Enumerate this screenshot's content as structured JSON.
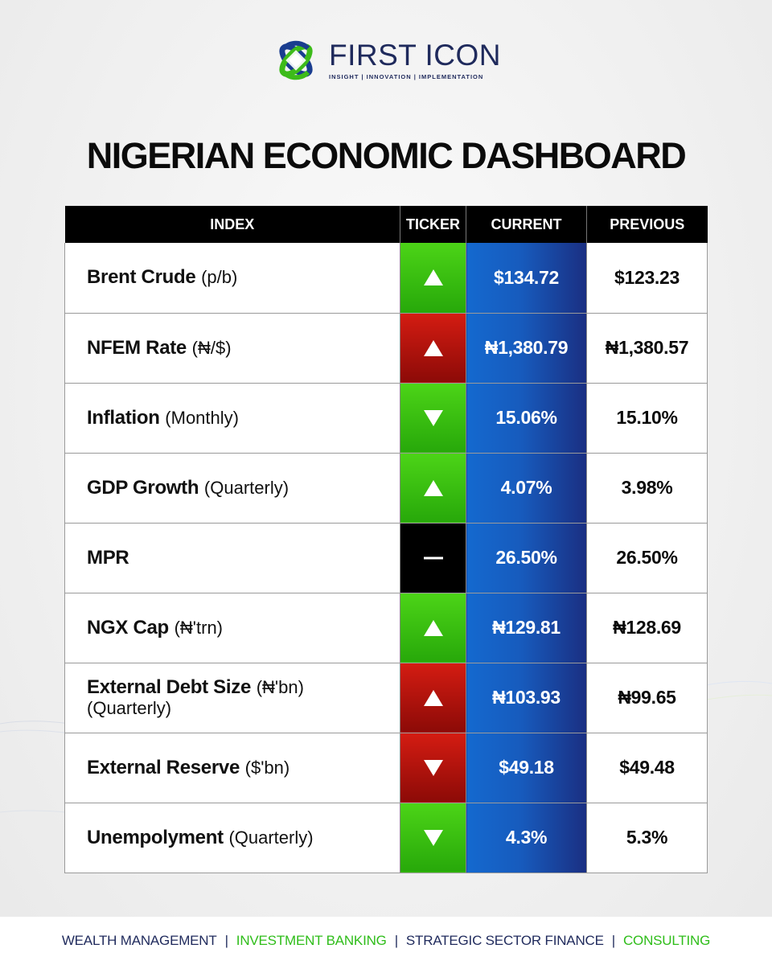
{
  "brand": {
    "name": "FIRST ICON",
    "tagline": "INSIGHT | INNOVATION | IMPLEMENTATION"
  },
  "title": "NIGERIAN ECONOMIC DASHBOARD",
  "table": {
    "headers": {
      "index": "INDEX",
      "ticker": "TICKER",
      "current": "CURRENT",
      "previous": "PREVIOUS"
    },
    "rows": [
      {
        "name": "Brent Crude",
        "unit": "(p/b)",
        "ticker": "up",
        "ticker_color": "#2db510",
        "current": "$134.72",
        "previous": "$123.23"
      },
      {
        "name": "NFEM Rate",
        "unit": "(₦/$)",
        "ticker": "up",
        "ticker_color": "#b3120c",
        "current": "₦1,380.79",
        "previous": "₦1,380.57"
      },
      {
        "name": "Inflation",
        "unit": "(Monthly)",
        "ticker": "down",
        "ticker_color": "#2db510",
        "current": "15.06%",
        "previous": "15.10%"
      },
      {
        "name": "GDP Growth",
        "unit": "(Quarterly)",
        "ticker": "up",
        "ticker_color": "#2db510",
        "current": "4.07%",
        "previous": "3.98%"
      },
      {
        "name": "MPR",
        "unit": "",
        "ticker": "flat",
        "ticker_color": "#000000",
        "current": "26.50%",
        "previous": "26.50%"
      },
      {
        "name": "NGX Cap",
        "unit": "(₦'trn)",
        "ticker": "up",
        "ticker_color": "#2db510",
        "current": "₦129.81",
        "previous": "₦128.69"
      },
      {
        "name": "External Debt Size",
        "unit": "(₦'bn)",
        "unit_line2": "(Quarterly)",
        "ticker": "up",
        "ticker_color": "#b3120c",
        "current": "₦103.93",
        "previous": "₦99.65"
      },
      {
        "name": "External Reserve",
        "unit": "($'bn)",
        "ticker": "down",
        "ticker_color": "#b3120c",
        "current": "$49.18",
        "previous": "$49.48"
      },
      {
        "name": "Unempolyment",
        "unit": "(Quarterly)",
        "ticker": "down",
        "ticker_color": "#2db510",
        "current": "4.3%",
        "previous": "5.3%"
      }
    ]
  },
  "footer": {
    "items": [
      {
        "label": "WEALTH MANAGEMENT",
        "color": "#1f2a5c"
      },
      {
        "label": "INVESTMENT BANKING",
        "color": "#2fbd1a"
      },
      {
        "label": "STRATEGIC SECTOR FINANCE",
        "color": "#1f2a5c"
      },
      {
        "label": "CONSULTING",
        "color": "#2fbd1a"
      }
    ],
    "separator": "|"
  },
  "colors": {
    "navy": "#1f2a5c",
    "green": "#2fbd1a",
    "ticker_green": "#2db510",
    "ticker_red": "#b3120c",
    "current_blue": "#1763c6"
  }
}
